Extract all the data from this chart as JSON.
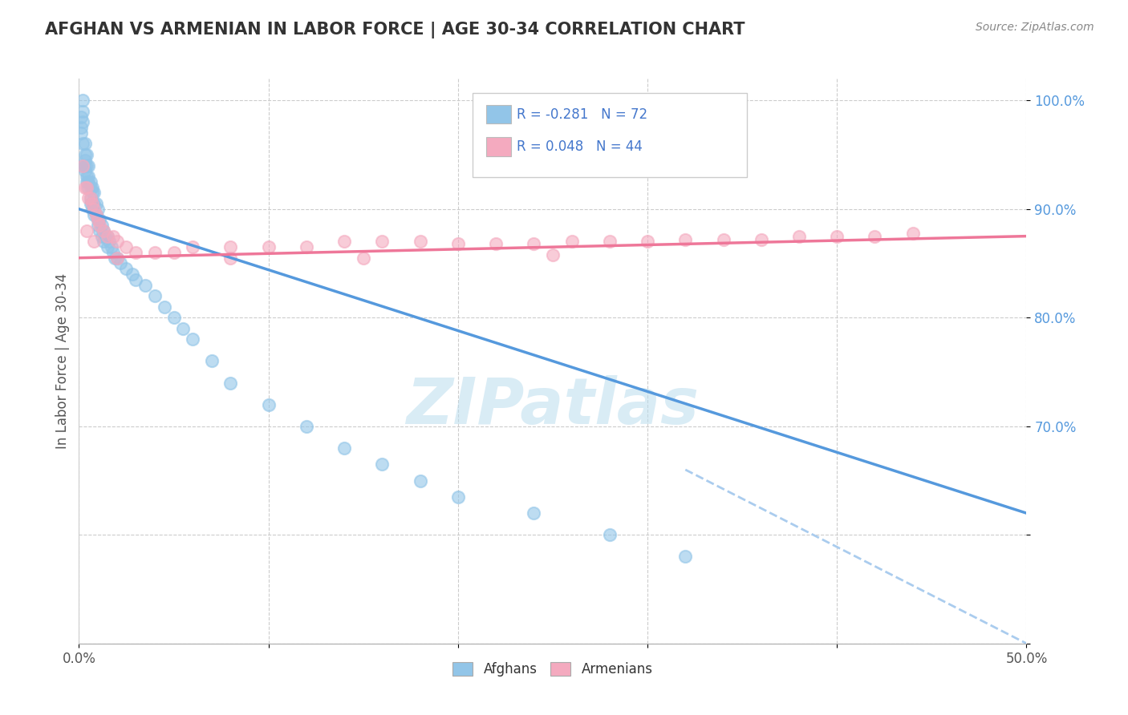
{
  "title": "AFGHAN VS ARMENIAN IN LABOR FORCE | AGE 30-34 CORRELATION CHART",
  "source_text": "Source: ZipAtlas.com",
  "ylabel": "In Labor Force | Age 30-34",
  "xlim": [
    0.0,
    0.5
  ],
  "ylim": [
    0.5,
    1.02
  ],
  "afghan_R": -0.281,
  "afghan_N": 72,
  "armenian_R": 0.048,
  "armenian_N": 44,
  "afghan_color": "#92C5E8",
  "armenian_color": "#F4AABF",
  "afghan_line_color": "#5599DD",
  "armenian_line_color": "#EE7799",
  "dashed_line_color": "#AACCEE",
  "watermark": "ZIPatlas",
  "watermark_color": "#AACCEE",
  "legend_afghan_label": "Afghans",
  "legend_armenian_label": "Armenians",
  "afghan_scatter_x": [
    0.001,
    0.001,
    0.001,
    0.002,
    0.002,
    0.002,
    0.002,
    0.002,
    0.003,
    0.003,
    0.003,
    0.003,
    0.003,
    0.004,
    0.004,
    0.004,
    0.004,
    0.005,
    0.005,
    0.005,
    0.005,
    0.006,
    0.006,
    0.006,
    0.006,
    0.007,
    0.007,
    0.007,
    0.007,
    0.008,
    0.008,
    0.008,
    0.009,
    0.009,
    0.01,
    0.01,
    0.01,
    0.011,
    0.011,
    0.012,
    0.012,
    0.013,
    0.013,
    0.014,
    0.015,
    0.015,
    0.016,
    0.017,
    0.018,
    0.019,
    0.02,
    0.022,
    0.025,
    0.028,
    0.03,
    0.035,
    0.04,
    0.045,
    0.05,
    0.055,
    0.06,
    0.07,
    0.08,
    0.1,
    0.12,
    0.14,
    0.16,
    0.18,
    0.2,
    0.24,
    0.28,
    0.32
  ],
  "afghan_scatter_y": [
    0.985,
    0.975,
    0.97,
    0.99,
    1.0,
    0.98,
    0.96,
    0.94,
    0.96,
    0.95,
    0.945,
    0.94,
    0.935,
    0.95,
    0.94,
    0.93,
    0.925,
    0.94,
    0.93,
    0.925,
    0.92,
    0.925,
    0.92,
    0.91,
    0.905,
    0.92,
    0.915,
    0.905,
    0.9,
    0.915,
    0.905,
    0.895,
    0.905,
    0.895,
    0.9,
    0.89,
    0.885,
    0.89,
    0.88,
    0.885,
    0.875,
    0.88,
    0.87,
    0.875,
    0.875,
    0.865,
    0.87,
    0.865,
    0.86,
    0.855,
    0.855,
    0.85,
    0.845,
    0.84,
    0.835,
    0.83,
    0.82,
    0.81,
    0.8,
    0.79,
    0.78,
    0.76,
    0.74,
    0.72,
    0.7,
    0.68,
    0.665,
    0.65,
    0.635,
    0.62,
    0.6,
    0.58
  ],
  "armenian_scatter_x": [
    0.002,
    0.003,
    0.004,
    0.005,
    0.006,
    0.007,
    0.008,
    0.009,
    0.01,
    0.011,
    0.013,
    0.015,
    0.018,
    0.02,
    0.025,
    0.03,
    0.04,
    0.05,
    0.06,
    0.08,
    0.1,
    0.12,
    0.14,
    0.16,
    0.18,
    0.2,
    0.22,
    0.24,
    0.26,
    0.28,
    0.3,
    0.32,
    0.34,
    0.36,
    0.38,
    0.4,
    0.42,
    0.44,
    0.004,
    0.008,
    0.02,
    0.08,
    0.15,
    0.25
  ],
  "armenian_scatter_y": [
    0.94,
    0.92,
    0.92,
    0.91,
    0.91,
    0.905,
    0.9,
    0.895,
    0.89,
    0.885,
    0.88,
    0.875,
    0.875,
    0.87,
    0.865,
    0.86,
    0.86,
    0.86,
    0.865,
    0.865,
    0.865,
    0.865,
    0.87,
    0.87,
    0.87,
    0.868,
    0.868,
    0.868,
    0.87,
    0.87,
    0.87,
    0.872,
    0.872,
    0.872,
    0.875,
    0.875,
    0.875,
    0.878,
    0.88,
    0.87,
    0.855,
    0.855,
    0.855,
    0.858
  ],
  "afghan_trendline_x": [
    0.0,
    0.5
  ],
  "afghan_trendline_y": [
    0.9,
    0.62
  ],
  "armenian_trendline_x": [
    0.0,
    0.5
  ],
  "armenian_trendline_y": [
    0.855,
    0.875
  ],
  "dashed_trendline_x": [
    0.32,
    0.5
  ],
  "dashed_trendline_y": [
    0.66,
    0.5
  ]
}
